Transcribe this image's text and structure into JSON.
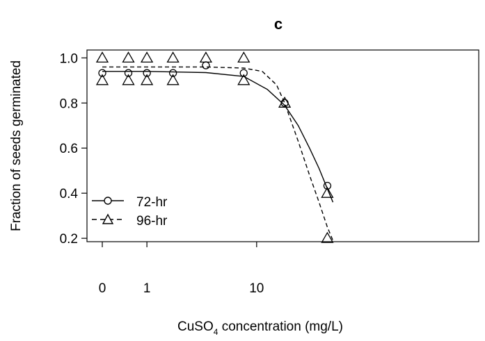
{
  "chart_data": {
    "type": "scatter",
    "title": "c",
    "xlabel": {
      "prefix": "CuSO",
      "subscript": "4",
      "suffix": " concentration (mg/L)"
    },
    "ylabel": "Fraction of seeds germinated",
    "x_scale": "log10(x+1)",
    "x_ticks": [
      {
        "value": 0,
        "label": "0"
      },
      {
        "value": 1,
        "label": "1"
      },
      {
        "value": 10,
        "label": "10"
      }
    ],
    "y_ticks": [
      {
        "value": 0.2,
        "label": "0.2"
      },
      {
        "value": 0.4,
        "label": "0.4"
      },
      {
        "value": 0.6,
        "label": "0.6"
      },
      {
        "value": 0.8,
        "label": "0.8"
      },
      {
        "value": 1.0,
        "label": "1.0"
      }
    ],
    "ylim": [
      0.185,
      1.035
    ],
    "grid": false,
    "legend_position": "bottom-left",
    "series": [
      {
        "name": "72-hr",
        "marker": "circle",
        "line_style": "solid",
        "points": [
          {
            "x": 0,
            "y": 0.933
          },
          {
            "x": 0.5,
            "y": 0.933
          },
          {
            "x": 1,
            "y": 0.933
          },
          {
            "x": 2,
            "y": 0.933
          },
          {
            "x": 4,
            "y": 0.967
          },
          {
            "x": 8,
            "y": 0.933
          },
          {
            "x": 16,
            "y": 0.8
          },
          {
            "x": 32,
            "y": 0.433
          }
        ],
        "fit": [
          {
            "x": 0,
            "y": 0.94
          },
          {
            "x": 1,
            "y": 0.94
          },
          {
            "x": 4,
            "y": 0.935
          },
          {
            "x": 8,
            "y": 0.918
          },
          {
            "x": 12,
            "y": 0.86
          },
          {
            "x": 16,
            "y": 0.79
          },
          {
            "x": 20,
            "y": 0.7
          },
          {
            "x": 24,
            "y": 0.6
          },
          {
            "x": 28,
            "y": 0.51
          },
          {
            "x": 32,
            "y": 0.42
          },
          {
            "x": 35,
            "y": 0.36
          }
        ]
      },
      {
        "name": "96-hr",
        "marker": "triangle",
        "line_style": "dashed",
        "points": [
          {
            "x": 0,
            "y": 1.0
          },
          {
            "x": 0,
            "y": 0.9
          },
          {
            "x": 0.5,
            "y": 1.0
          },
          {
            "x": 0.5,
            "y": 0.9
          },
          {
            "x": 1,
            "y": 1.0
          },
          {
            "x": 1,
            "y": 0.9
          },
          {
            "x": 2,
            "y": 1.0
          },
          {
            "x": 2,
            "y": 0.9
          },
          {
            "x": 4,
            "y": 1.0
          },
          {
            "x": 8,
            "y": 1.0
          },
          {
            "x": 8,
            "y": 0.9
          },
          {
            "x": 16,
            "y": 0.8
          },
          {
            "x": 32,
            "y": 0.4
          },
          {
            "x": 32,
            "y": 0.2
          }
        ],
        "fit": [
          {
            "x": 0,
            "y": 0.96
          },
          {
            "x": 1,
            "y": 0.96
          },
          {
            "x": 4,
            "y": 0.96
          },
          {
            "x": 8,
            "y": 0.955
          },
          {
            "x": 11,
            "y": 0.94
          },
          {
            "x": 14,
            "y": 0.88
          },
          {
            "x": 16,
            "y": 0.8
          },
          {
            "x": 20,
            "y": 0.63
          },
          {
            "x": 24,
            "y": 0.48
          },
          {
            "x": 28,
            "y": 0.36
          },
          {
            "x": 32,
            "y": 0.25
          },
          {
            "x": 35,
            "y": 0.19
          }
        ]
      }
    ]
  }
}
